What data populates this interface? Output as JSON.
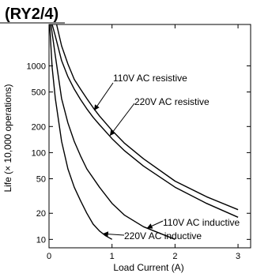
{
  "chart_data": {
    "type": "line",
    "title": "(RY2/4)",
    "xlabel": "Load Current (A)",
    "ylabel": "Life (× 10,000 operations)",
    "xlim": [
      0,
      3.2
    ],
    "ylim": [
      8,
      3000
    ],
    "y_scale": "log",
    "grid": false,
    "x_ticks": [
      0,
      1,
      2,
      3
    ],
    "y_ticks": [
      10,
      20,
      50,
      100,
      200,
      500,
      1000
    ],
    "series": [
      {
        "name": "110V AC resistive",
        "x": [
          0.12,
          0.2,
          0.3,
          0.4,
          0.5,
          0.6,
          0.7,
          0.8,
          1.0,
          1.2,
          1.5,
          2.0,
          2.5,
          3.0
        ],
        "y": [
          3000,
          1700,
          1050,
          700,
          540,
          420,
          330,
          265,
          180,
          128,
          85,
          47,
          31,
          22
        ]
      },
      {
        "name": "220V AC resistive",
        "x": [
          0.05,
          0.1,
          0.2,
          0.3,
          0.4,
          0.5,
          0.6,
          0.7,
          0.8,
          1.0,
          1.2,
          1.5,
          2.0,
          2.5,
          3.0
        ],
        "y": [
          3000,
          2200,
          1150,
          750,
          540,
          410,
          320,
          255,
          210,
          145,
          105,
          70,
          40,
          26,
          18
        ]
      },
      {
        "name": "110V AC inductive",
        "x": [
          0.03,
          0.1,
          0.2,
          0.3,
          0.4,
          0.5,
          0.6,
          0.8,
          1.0,
          1.2,
          1.5,
          2.0
        ],
        "y": [
          3000,
          1300,
          420,
          220,
          135,
          92,
          65,
          40,
          26,
          19,
          14,
          10
        ]
      },
      {
        "name": "220V AC inductive",
        "x": [
          0.01,
          0.05,
          0.1,
          0.2,
          0.3,
          0.4,
          0.5,
          0.6,
          0.7,
          0.8,
          0.9,
          1.0
        ],
        "y": [
          3000,
          950,
          420,
          135,
          65,
          40,
          28,
          20,
          15,
          12.5,
          11,
          10
        ]
      }
    ],
    "annotations": [
      {
        "series": "110V AC resistive",
        "label": "110V AC resistive",
        "arrow_at": [
          0.72,
          310
        ]
      },
      {
        "series": "220V AC resistive",
        "label": "220V AC resistive",
        "arrow_at": [
          0.97,
          158
        ]
      },
      {
        "series": "110V AC inductive",
        "label": "110V AC inductive",
        "arrow_at": [
          1.56,
          13.5
        ]
      },
      {
        "series": "220V AC inductive",
        "label": "220V AC inductive",
        "arrow_at": [
          0.86,
          11.6
        ]
      }
    ]
  }
}
